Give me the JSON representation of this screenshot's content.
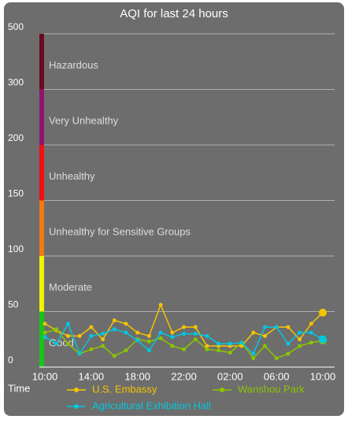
{
  "chart_data": {
    "type": "line",
    "title": "AQI for last 24 hours",
    "x_label": "Time",
    "categories": [
      "10:00",
      null,
      null,
      null,
      "14:00",
      null,
      null,
      null,
      "18:00",
      null,
      null,
      null,
      "22:00",
      null,
      null,
      null,
      "02:00",
      null,
      null,
      null,
      "06:00",
      null,
      null,
      null,
      "10:00"
    ],
    "ylim": [
      0,
      500
    ],
    "yticks": [
      0,
      50,
      100,
      150,
      200,
      300,
      500
    ],
    "grid": true,
    "bands": [
      {
        "label": "Good",
        "from": 0,
        "to": 50,
        "color": "#18c418"
      },
      {
        "label": "Moderate",
        "from": 50,
        "to": 100,
        "color": "#f2f200"
      },
      {
        "label": "Unhealthy for Sensitive Groups",
        "from": 100,
        "to": 150,
        "color": "#f07a12"
      },
      {
        "label": "Unhealthy",
        "from": 150,
        "to": 200,
        "color": "#f01010"
      },
      {
        "label": "Very Unhealthy",
        "from": 200,
        "to": 300,
        "color": "#8e1670"
      },
      {
        "label": "Hazardous",
        "from": 300,
        "to": 500,
        "color": "#6a0a22"
      }
    ],
    "series": [
      {
        "name": "U.S. Embassy",
        "color": "#f5c400",
        "values": [
          39,
          33,
          28,
          28,
          36,
          25,
          42,
          39,
          31,
          28,
          56,
          31,
          36,
          36,
          19,
          19,
          19,
          19,
          31,
          28,
          36,
          36,
          25,
          39,
          49
        ]
      },
      {
        "name": "Wanshou Park",
        "color": "#8bc400",
        "values": [
          31,
          34,
          21,
          12,
          16,
          19,
          10,
          15,
          25,
          23,
          26,
          19,
          16,
          25,
          16,
          15,
          13,
          22,
          8,
          19,
          8,
          12,
          19,
          22,
          24
        ]
      },
      {
        "name": "Agricultural Exhibition Hall",
        "color": "#00c8e0",
        "values": [
          27,
          21,
          39,
          12,
          28,
          30,
          34,
          31,
          24,
          15,
          31,
          27,
          30,
          30,
          28,
          21,
          21,
          22,
          12,
          36,
          36,
          21,
          31,
          31,
          25
        ]
      }
    ]
  }
}
